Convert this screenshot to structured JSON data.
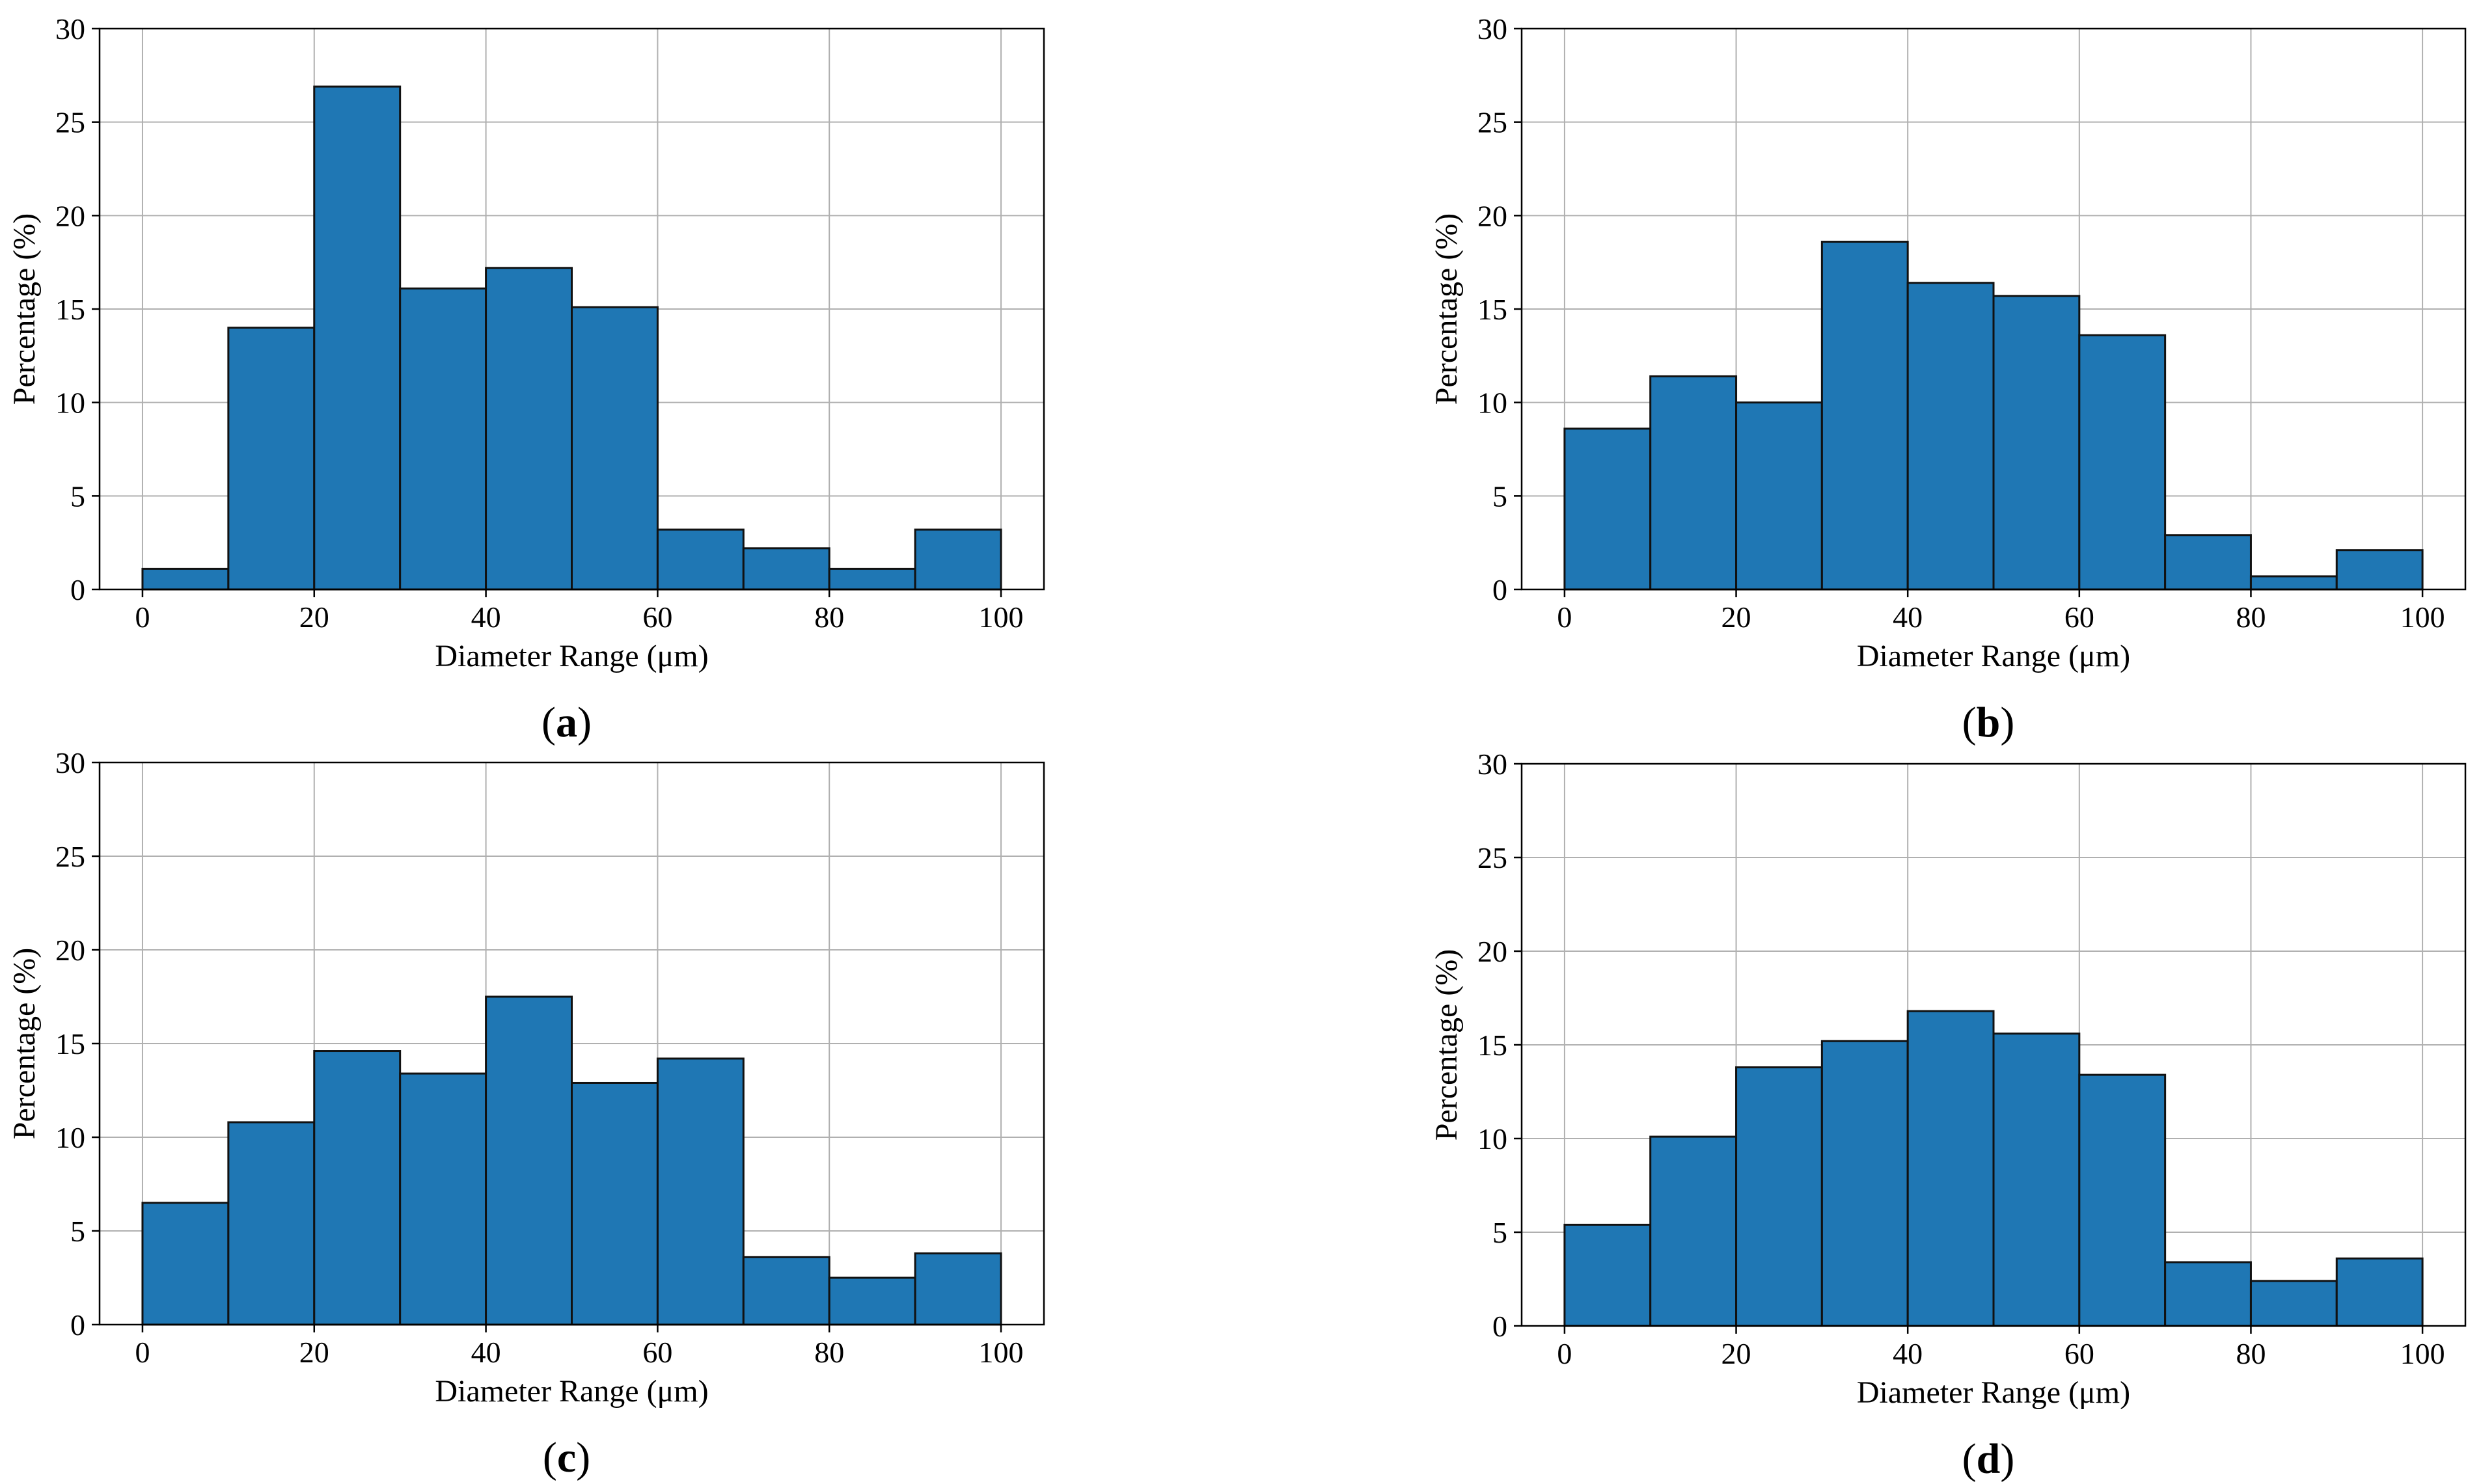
{
  "colors": {
    "bar_fill": "#1f77b4",
    "bar_edge": "#111111",
    "grid": "#b0b0b0"
  },
  "chart_data": [
    {
      "type": "bar",
      "panel_label": "a",
      "xlabel": "Diameter Range (μm)",
      "ylabel": "Percentage (%)",
      "bin_edges": [
        0,
        10,
        20,
        30,
        40,
        50,
        60,
        70,
        80,
        90,
        100
      ],
      "values": [
        1.1,
        14.0,
        26.9,
        16.1,
        17.2,
        15.1,
        3.2,
        2.2,
        1.1,
        3.2
      ],
      "xlim": [
        -5,
        105
      ],
      "ylim": [
        0,
        30
      ],
      "xticks": [
        "0",
        "20",
        "40",
        "60",
        "80",
        "100"
      ],
      "yticks": [
        "0",
        "5",
        "10",
        "15",
        "20",
        "25",
        "30"
      ],
      "grid": true
    },
    {
      "type": "bar",
      "panel_label": "b",
      "xlabel": "Diameter Range (μm)",
      "ylabel": "Percentage (%)",
      "bin_edges": [
        0,
        10,
        20,
        30,
        40,
        50,
        60,
        70,
        80,
        90,
        100
      ],
      "values": [
        8.6,
        11.4,
        10.0,
        18.6,
        16.4,
        15.7,
        13.6,
        2.9,
        0.7,
        2.1
      ],
      "xlim": [
        -5,
        105
      ],
      "ylim": [
        0,
        30
      ],
      "xticks": [
        "0",
        "20",
        "40",
        "60",
        "80",
        "100"
      ],
      "yticks": [
        "0",
        "5",
        "10",
        "15",
        "20",
        "25",
        "30"
      ],
      "grid": true
    },
    {
      "type": "bar",
      "panel_label": "c",
      "xlabel": "Diameter Range (μm)",
      "ylabel": "Percentage (%)",
      "bin_edges": [
        0,
        10,
        20,
        30,
        40,
        50,
        60,
        70,
        80,
        90,
        100
      ],
      "values": [
        6.5,
        10.8,
        14.6,
        13.4,
        17.5,
        12.9,
        14.2,
        3.6,
        2.5,
        3.8
      ],
      "xlim": [
        -5,
        105
      ],
      "ylim": [
        0,
        30
      ],
      "xticks": [
        "0",
        "20",
        "40",
        "60",
        "80",
        "100"
      ],
      "yticks": [
        "0",
        "5",
        "10",
        "15",
        "20",
        "25",
        "30"
      ],
      "grid": true
    },
    {
      "type": "bar",
      "panel_label": "d",
      "xlabel": "Diameter Range (μm)",
      "ylabel": "Percentage (%)",
      "bin_edges": [
        0,
        10,
        20,
        30,
        40,
        50,
        60,
        70,
        80,
        90,
        100
      ],
      "values": [
        5.4,
        10.1,
        13.8,
        15.2,
        16.8,
        15.6,
        13.4,
        3.4,
        2.4,
        3.6
      ],
      "xlim": [
        -5,
        105
      ],
      "ylim": [
        0,
        30
      ],
      "xticks": [
        "0",
        "20",
        "40",
        "60",
        "80",
        "100"
      ],
      "yticks": [
        "0",
        "5",
        "10",
        "15",
        "20",
        "25",
        "30"
      ],
      "grid": true
    }
  ]
}
